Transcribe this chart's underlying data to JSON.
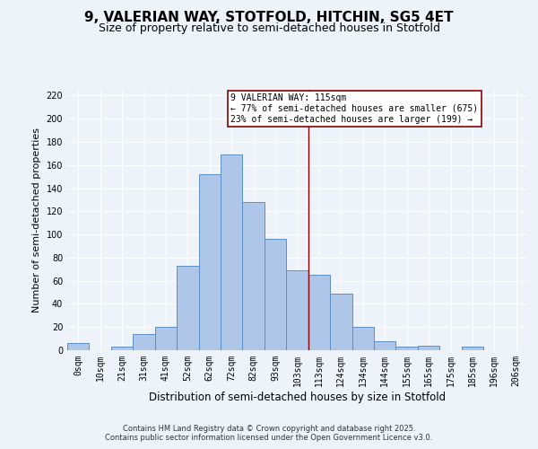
{
  "title1": "9, VALERIAN WAY, STOTFOLD, HITCHIN, SG5 4ET",
  "title2": "Size of property relative to semi-detached houses in Stotfold",
  "xlabel": "Distribution of semi-detached houses by size in Stotfold",
  "ylabel": "Number of semi-detached properties",
  "categories": [
    "0sqm",
    "10sqm",
    "21sqm",
    "31sqm",
    "41sqm",
    "52sqm",
    "62sqm",
    "72sqm",
    "82sqm",
    "93sqm",
    "103sqm",
    "113sqm",
    "124sqm",
    "134sqm",
    "144sqm",
    "155sqm",
    "165sqm",
    "175sqm",
    "185sqm",
    "196sqm",
    "206sqm"
  ],
  "values": [
    6,
    0,
    3,
    14,
    20,
    73,
    152,
    169,
    128,
    96,
    69,
    65,
    49,
    20,
    8,
    3,
    4,
    0,
    3,
    0,
    0
  ],
  "bar_color": "#aec6e8",
  "bar_edge_color": "#5b8ec7",
  "vline_color": "#8b0000",
  "annotation_title": "9 VALERIAN WAY: 115sqm",
  "annotation_line1": "← 77% of semi-detached houses are smaller (675)",
  "annotation_line2": "23% of semi-detached houses are larger (199) →",
  "annotation_box_color": "#ffffff",
  "annotation_box_edge": "#8b0000",
  "ylim": [
    0,
    225
  ],
  "yticks": [
    0,
    20,
    40,
    60,
    80,
    100,
    120,
    140,
    160,
    180,
    200,
    220
  ],
  "bg_color": "#eef2f9",
  "footer1": "Contains HM Land Registry data © Crown copyright and database right 2025.",
  "footer2": "Contains public sector information licensed under the Open Government Licence v3.0.",
  "title1_fontsize": 11,
  "title2_fontsize": 9,
  "xlabel_fontsize": 8.5,
  "ylabel_fontsize": 8,
  "tick_fontsize": 7,
  "annotation_fontsize": 7,
  "footer_fontsize": 6
}
